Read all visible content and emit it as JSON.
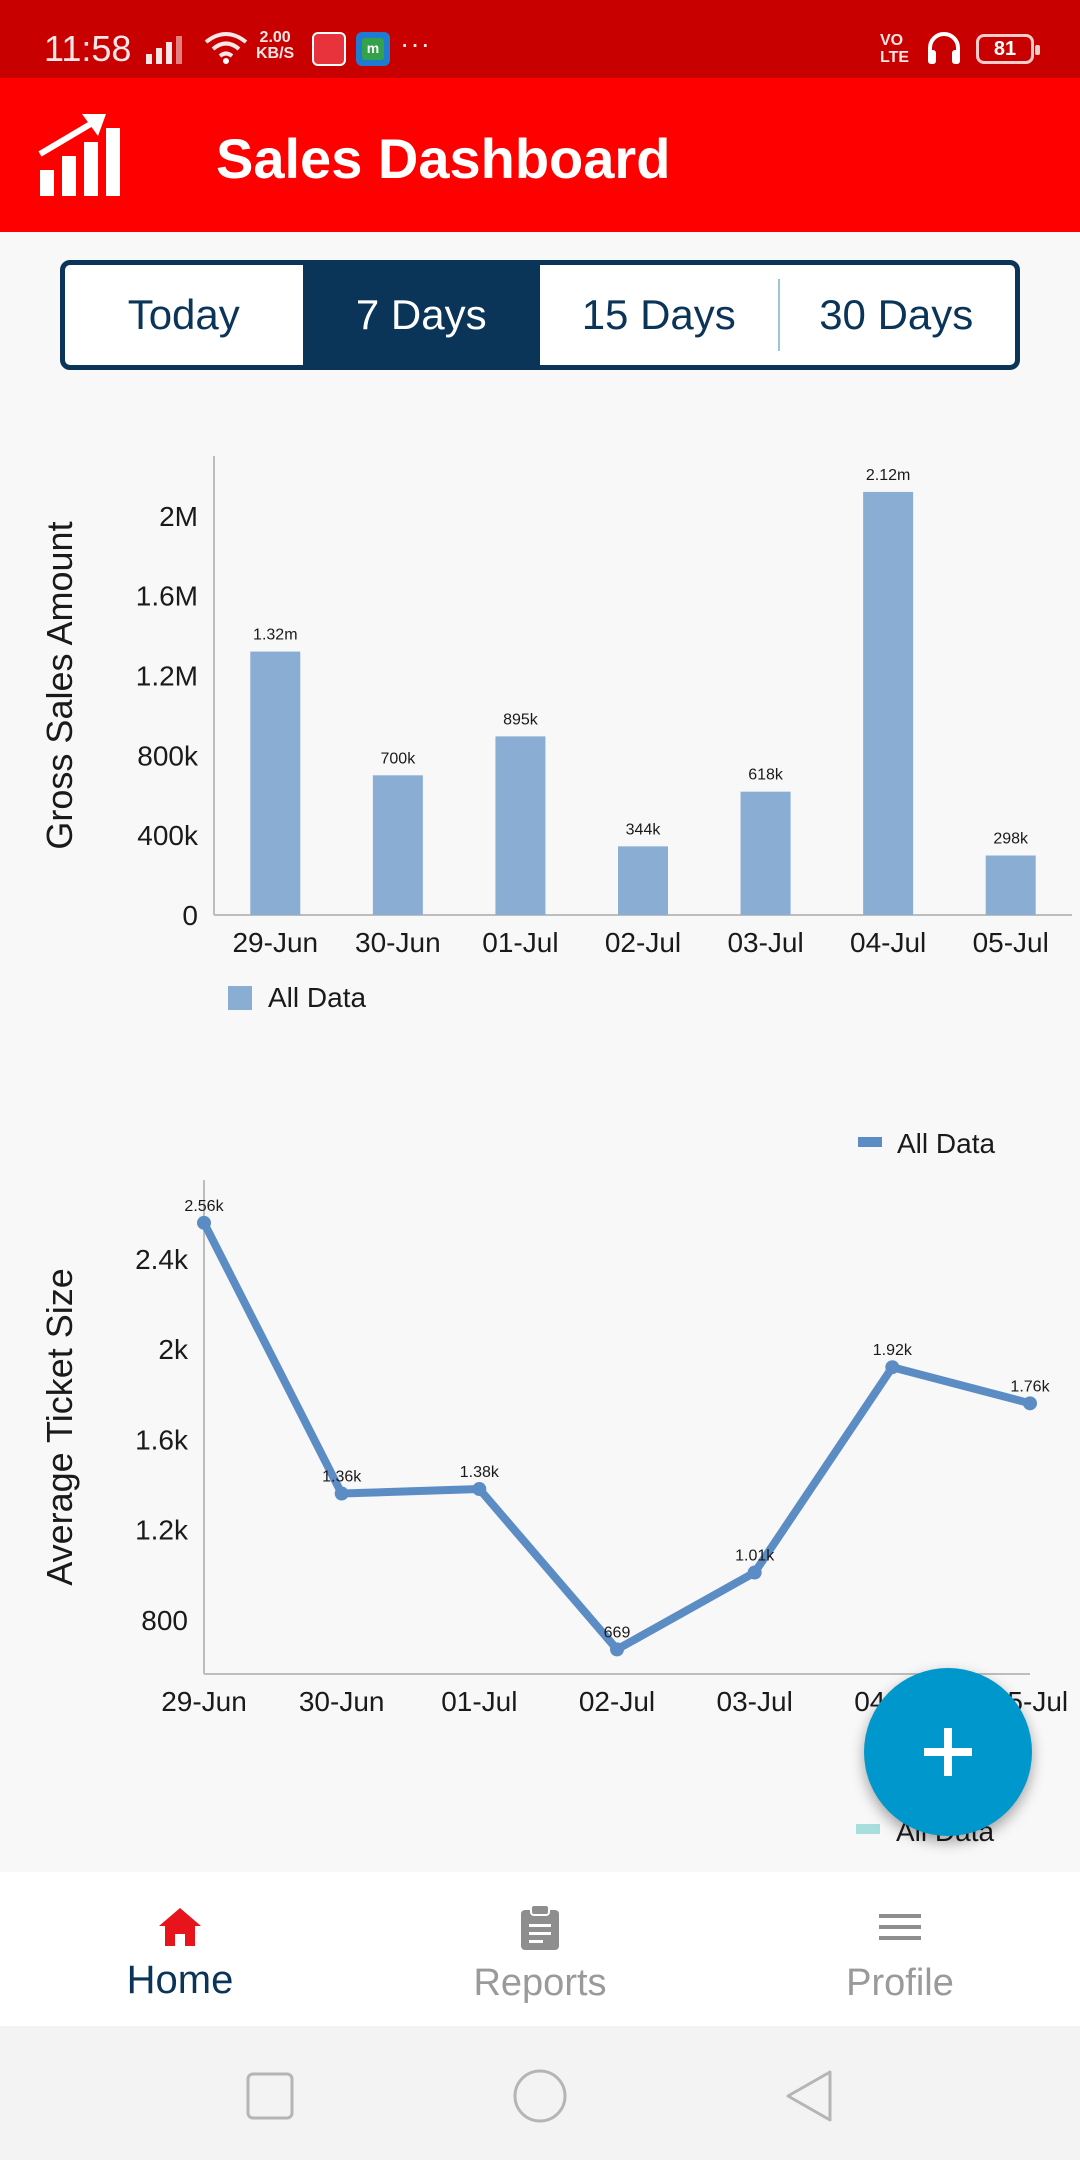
{
  "status_bar": {
    "time": "11:58",
    "net_speed_value": "2.00",
    "net_speed_unit": "KB/S",
    "network_label_1": "VO",
    "network_label_2": "LTE",
    "battery": "81"
  },
  "app_bar": {
    "title": "Sales Dashboard",
    "logo_icon": "trending-up-bars-icon"
  },
  "range_tabs": [
    {
      "label": "Today",
      "active": false
    },
    {
      "label": "7 Days",
      "active": true
    },
    {
      "label": "15 Days",
      "active": false
    },
    {
      "label": "30 Days",
      "active": false
    }
  ],
  "chart_data": [
    {
      "type": "bar",
      "ylabel": "Gross Sales Amount",
      "categories": [
        "29-Jun",
        "30-Jun",
        "01-Jul",
        "02-Jul",
        "03-Jul",
        "04-Jul",
        "05-Jul"
      ],
      "series": [
        {
          "name": "All Data",
          "values": [
            1320000,
            700000,
            895000,
            344000,
            618000,
            2120000,
            298000
          ],
          "data_labels": [
            "1.32m",
            "700k",
            "895k",
            "344k",
            "618k",
            "2.12m",
            "298k"
          ],
          "color": "#8aadd4"
        }
      ],
      "yticks": [
        0,
        400000,
        800000,
        1200000,
        1600000,
        2000000
      ],
      "ytick_labels": [
        "0",
        "400k",
        "800k",
        "1.2M",
        "1.6M",
        "2M"
      ],
      "ylim": [
        0,
        2300000
      ],
      "legend": "bottom-left"
    },
    {
      "type": "line",
      "ylabel": "Average Ticket Size",
      "categories": [
        "29-Jun",
        "30-Jun",
        "01-Jul",
        "02-Jul",
        "03-Jul",
        "04-Jul",
        "05-Jul"
      ],
      "series": [
        {
          "name": "All Data",
          "values": [
            2560,
            1360,
            1380,
            669,
            1010,
            1920,
            1760
          ],
          "data_labels": [
            "2.56k",
            "1.36k",
            "1.38k",
            "669",
            "1.01k",
            "1.92k",
            "1.76k"
          ],
          "color": "#5b8dc4"
        }
      ],
      "yticks": [
        800,
        1200,
        1600,
        2000,
        2400
      ],
      "ytick_labels": [
        "800",
        "1.2k",
        "1.6k",
        "2k",
        "2.4k"
      ],
      "ylim": [
        560,
        2750
      ],
      "legend": "top-right"
    }
  ],
  "third_chart_legend": {
    "label": "All Data",
    "color": "#a8dede"
  },
  "fab": {
    "icon": "plus-icon"
  },
  "bottom_nav": [
    {
      "label": "Home",
      "icon": "home-icon",
      "active": true
    },
    {
      "label": "Reports",
      "icon": "clipboard-icon",
      "active": false
    },
    {
      "label": "Profile",
      "icon": "menu-icon",
      "active": false
    }
  ],
  "colors": {
    "status_bar": "#c90000",
    "app_bar": "#ff0000",
    "accent_navy": "#0b3558",
    "fab": "#0098cc"
  }
}
